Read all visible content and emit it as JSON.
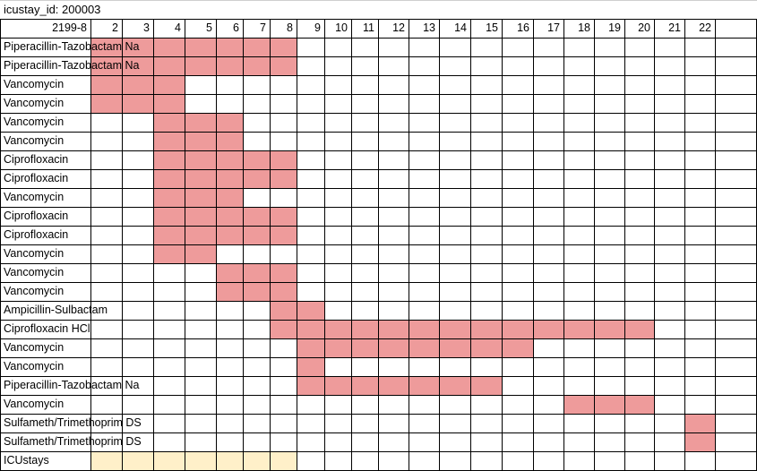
{
  "title": "icustay_id: 200003",
  "header": {
    "corner": "2199-8",
    "days": [
      "2",
      "3",
      "4",
      "5",
      "6",
      "7",
      "8",
      "9",
      "10",
      "11",
      "12",
      "13",
      "14",
      "15",
      "16",
      "17",
      "18",
      "19",
      "20",
      "21",
      "22"
    ]
  },
  "colors": {
    "drug": "#ee9b9b",
    "icustay": "#fff0c9",
    "grid": "#000000"
  },
  "rows": [
    {
      "label": "Piperacillin-Tazobactam Na",
      "kind": "drug",
      "start": 1,
      "end": 7
    },
    {
      "label": "Piperacillin-Tazobactam Na",
      "kind": "drug",
      "start": 1,
      "end": 7
    },
    {
      "label": "Vancomycin",
      "kind": "drug",
      "start": 1,
      "end": 3
    },
    {
      "label": "Vancomycin",
      "kind": "drug",
      "start": 1,
      "end": 3
    },
    {
      "label": "Vancomycin",
      "kind": "drug",
      "start": 3,
      "end": 5
    },
    {
      "label": "Vancomycin",
      "kind": "drug",
      "start": 3,
      "end": 5
    },
    {
      "label": "Ciprofloxacin",
      "kind": "drug",
      "start": 3,
      "end": 7
    },
    {
      "label": "Ciprofloxacin",
      "kind": "drug",
      "start": 3,
      "end": 7
    },
    {
      "label": "Vancomycin",
      "kind": "drug",
      "start": 3,
      "end": 5
    },
    {
      "label": "Ciprofloxacin",
      "kind": "drug",
      "start": 3,
      "end": 7
    },
    {
      "label": "Ciprofloxacin",
      "kind": "drug",
      "start": 3,
      "end": 7
    },
    {
      "label": "Vancomycin",
      "kind": "drug",
      "start": 3,
      "end": 4
    },
    {
      "label": "Vancomycin",
      "kind": "drug",
      "start": 5,
      "end": 7
    },
    {
      "label": "Vancomycin",
      "kind": "drug",
      "start": 5,
      "end": 7
    },
    {
      "label": "Ampicillin-Sulbactam",
      "kind": "drug",
      "start": 7,
      "end": 8
    },
    {
      "label": "Ciprofloxacin HCl",
      "kind": "drug",
      "start": 7,
      "end": 19
    },
    {
      "label": "Vancomycin",
      "kind": "drug",
      "start": 8,
      "end": 15
    },
    {
      "label": "Vancomycin",
      "kind": "drug",
      "start": 8,
      "end": 8
    },
    {
      "label": "Piperacillin-Tazobactam Na",
      "kind": "drug",
      "start": 8,
      "end": 14
    },
    {
      "label": "Vancomycin",
      "kind": "drug",
      "start": 17,
      "end": 19
    },
    {
      "label": "Sulfameth/Trimethoprim DS",
      "kind": "drug",
      "start": 21,
      "end": 21
    },
    {
      "label": "Sulfameth/Trimethoprim DS",
      "kind": "drug",
      "start": 21,
      "end": 21
    },
    {
      "label": "ICUstays",
      "kind": "icustay",
      "start": 1,
      "end": 7
    }
  ]
}
